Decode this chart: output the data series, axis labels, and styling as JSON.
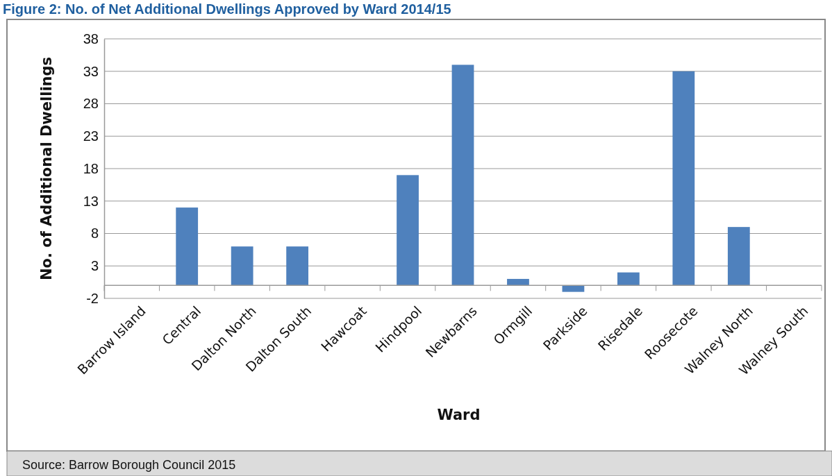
{
  "chart_data": {
    "type": "bar",
    "title": "Figure 2: No. of Net Additional Dwellings Approved by Ward 2014/15",
    "xlabel": "Ward",
    "ylabel": "No. of Additional Dwellings",
    "categories": [
      "Barrow Island",
      "Central",
      "Dalton North",
      "Dalton South",
      "Hawcoat",
      "Hindpool",
      "Newbarns",
      "Ormgill",
      "Parkside",
      "Risedale",
      "Roosecote",
      "Walney North",
      "Walney South"
    ],
    "values": [
      0,
      12,
      6,
      6,
      0,
      17,
      34,
      1,
      -1,
      2,
      33,
      9,
      0
    ],
    "color": "#4f81bd",
    "ylim": [
      -2,
      38
    ],
    "yticks": [
      -2,
      3,
      8,
      13,
      18,
      23,
      28,
      33,
      38
    ],
    "grid": "y",
    "annotations": [
      "Source: Barrow Borough Council 2015"
    ]
  }
}
